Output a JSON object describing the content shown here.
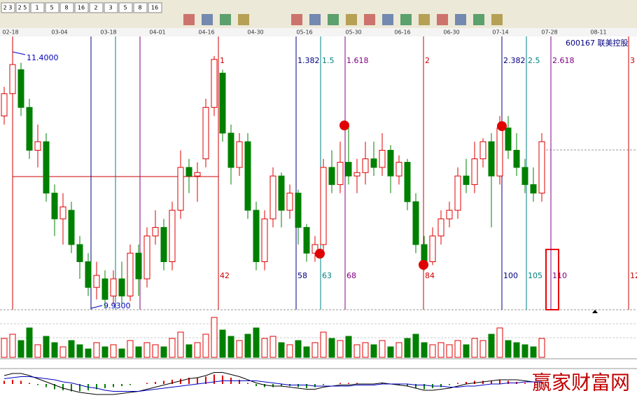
{
  "chart_data": {
    "type": "candlestick",
    "symbol": "600167  联美控股",
    "toolbar_labels": [
      "2 3",
      "2 5",
      "1",
      "5",
      "8",
      "16",
      "2",
      "3",
      "5",
      "8",
      "16"
    ],
    "dates": [
      "02-18",
      "03-04",
      "03-18",
      "04-01",
      "04-16",
      "04-30",
      "05-16",
      "05-30",
      "06-16",
      "06-30",
      "07-14",
      "07-28",
      "08-11"
    ],
    "high_label": "11.4000",
    "low_label": "9.9300",
    "ylim": [
      9.92,
      11.42
    ],
    "open": [
      11.05,
      11.18,
      11.32,
      11.1,
      10.85,
      10.9,
      10.6,
      10.45,
      10.5,
      10.3,
      10.2,
      10.05,
      10.1,
      10.0,
      10.1,
      10.0,
      10.25,
      10.1,
      10.35,
      10.4,
      10.2,
      10.5,
      10.75,
      10.7,
      10.8,
      11.1,
      11.3,
      10.95,
      10.75,
      10.9,
      10.5,
      10.2,
      10.45,
      10.7,
      10.5,
      10.6,
      10.4,
      10.25,
      10.3,
      10.75,
      10.65,
      10.78,
      10.7,
      10.72,
      10.8,
      10.75,
      10.85,
      10.7,
      10.78,
      10.55,
      10.3,
      10.2,
      10.35,
      10.45,
      10.5,
      10.7,
      10.65,
      10.8,
      10.9,
      10.7,
      10.98,
      10.85,
      10.75,
      10.65,
      10.6
    ],
    "close": [
      11.18,
      11.35,
      11.1,
      10.85,
      10.9,
      10.6,
      10.45,
      10.52,
      10.3,
      10.2,
      10.05,
      10.12,
      9.98,
      10.1,
      10.0,
      10.25,
      10.1,
      10.35,
      10.4,
      10.2,
      10.5,
      10.75,
      10.7,
      10.72,
      11.1,
      11.38,
      10.95,
      10.75,
      10.9,
      10.5,
      10.2,
      10.45,
      10.7,
      10.5,
      10.6,
      10.4,
      10.25,
      10.3,
      10.75,
      10.65,
      10.78,
      10.7,
      10.72,
      10.8,
      10.75,
      10.85,
      10.7,
      10.78,
      10.55,
      10.3,
      10.2,
      10.35,
      10.45,
      10.5,
      10.7,
      10.65,
      10.8,
      10.9,
      10.7,
      10.98,
      10.85,
      10.75,
      10.65,
      10.6,
      10.9
    ],
    "high": [
      11.22,
      11.4,
      11.36,
      11.15,
      11.0,
      10.95,
      10.65,
      10.6,
      10.55,
      10.35,
      10.25,
      10.2,
      10.15,
      10.15,
      10.2,
      10.3,
      10.3,
      10.4,
      10.5,
      10.45,
      10.55,
      10.85,
      10.8,
      10.78,
      11.15,
      11.4,
      11.32,
      11.0,
      10.95,
      10.95,
      10.55,
      10.5,
      10.75,
      10.72,
      10.65,
      10.62,
      10.42,
      10.35,
      10.8,
      10.85,
      10.9,
      11.0,
      10.8,
      10.9,
      10.9,
      10.95,
      10.88,
      10.82,
      10.8,
      10.6,
      10.35,
      10.4,
      10.5,
      10.55,
      10.75,
      10.8,
      10.9,
      10.92,
      10.95,
      11.05,
      11.05,
      10.95,
      10.8,
      10.75,
      10.95
    ],
    "low": [
      11.0,
      11.12,
      11.05,
      10.8,
      10.75,
      10.55,
      10.35,
      10.3,
      10.25,
      10.1,
      10.0,
      9.98,
      9.93,
      9.95,
      9.95,
      9.97,
      10.0,
      10.05,
      10.3,
      10.15,
      10.15,
      10.45,
      10.6,
      10.55,
      10.75,
      11.05,
      10.9,
      10.65,
      10.7,
      10.45,
      10.15,
      10.15,
      10.4,
      10.4,
      10.45,
      10.3,
      10.2,
      10.2,
      10.25,
      10.6,
      10.6,
      10.65,
      10.6,
      10.65,
      10.7,
      10.7,
      10.6,
      10.65,
      10.5,
      10.25,
      10.15,
      10.18,
      10.3,
      10.4,
      10.45,
      10.6,
      10.6,
      10.75,
      10.4,
      10.65,
      10.8,
      10.7,
      10.6,
      10.55,
      10.55
    ],
    "volume": [
      45,
      55,
      40,
      70,
      30,
      50,
      35,
      25,
      40,
      30,
      20,
      35,
      25,
      30,
      20,
      40,
      25,
      35,
      30,
      25,
      45,
      60,
      30,
      35,
      55,
      95,
      65,
      50,
      40,
      55,
      70,
      45,
      50,
      35,
      30,
      40,
      25,
      35,
      60,
      45,
      40,
      50,
      30,
      35,
      30,
      40,
      25,
      35,
      45,
      55,
      35,
      30,
      35,
      30,
      40,
      30,
      45,
      40,
      55,
      70,
      40,
      35,
      30,
      25,
      45
    ],
    "macd": [
      0.3,
      0.4,
      0.3,
      0.1,
      -0.1,
      -0.3,
      -0.5,
      -0.6,
      -0.7,
      -0.7,
      -0.6,
      -0.5,
      -0.4,
      -0.3,
      -0.2,
      -0.1,
      0.0,
      0.1,
      0.2,
      0.3,
      0.4,
      0.5,
      0.6,
      0.6,
      0.7,
      0.9,
      0.8,
      0.6,
      0.4,
      0.1,
      -0.2,
      -0.3,
      -0.3,
      -0.2,
      -0.2,
      -0.3,
      -0.4,
      -0.3,
      -0.1,
      0.0,
      0.1,
      0.1,
      0.1,
      0.0,
      0.0,
      0.1,
      0.0,
      -0.1,
      -0.2,
      -0.4,
      -0.5,
      -0.4,
      -0.3,
      -0.1,
      0.1,
      0.2,
      0.3,
      0.3,
      0.3,
      0.4,
      0.3,
      0.2,
      0.1,
      0.0,
      0.1
    ],
    "dif": [
      0.8,
      1.0,
      1.0,
      0.8,
      0.5,
      0.2,
      -0.1,
      -0.4,
      -0.6,
      -0.8,
      -0.9,
      -1.0,
      -1.0,
      -1.0,
      -0.9,
      -0.8,
      -0.7,
      -0.5,
      -0.3,
      -0.1,
      0.1,
      0.3,
      0.5,
      0.6,
      0.8,
      1.1,
      1.1,
      0.9,
      0.7,
      0.4,
      0.1,
      -0.1,
      -0.2,
      -0.2,
      -0.3,
      -0.4,
      -0.5,
      -0.5,
      -0.3,
      -0.2,
      -0.1,
      -0.1,
      0.0,
      0.0,
      0.0,
      0.1,
      0.0,
      -0.1,
      -0.2,
      -0.4,
      -0.6,
      -0.6,
      -0.5,
      -0.4,
      -0.2,
      0.0,
      0.1,
      0.2,
      0.3,
      0.4,
      0.4,
      0.4,
      0.3,
      0.2,
      0.2
    ],
    "dea": [
      0.5,
      0.6,
      0.7,
      0.7,
      0.6,
      0.5,
      0.4,
      0.2,
      0.1,
      -0.1,
      -0.3,
      -0.4,
      -0.6,
      -0.7,
      -0.7,
      -0.7,
      -0.7,
      -0.6,
      -0.5,
      -0.4,
      -0.3,
      -0.2,
      -0.1,
      0.0,
      0.1,
      0.2,
      0.3,
      0.3,
      0.3,
      0.3,
      0.3,
      0.2,
      0.1,
      0.0,
      -0.1,
      -0.1,
      -0.1,
      -0.2,
      -0.2,
      -0.2,
      -0.2,
      -0.2,
      -0.1,
      -0.1,
      -0.1,
      0.0,
      0.0,
      0.0,
      0.0,
      -0.1,
      -0.1,
      -0.2,
      -0.2,
      -0.3,
      -0.3,
      -0.2,
      -0.2,
      -0.1,
      0.0,
      0.0,
      0.1,
      0.1,
      0.2,
      0.2,
      0.2
    ],
    "fib_lines": [
      {
        "label": "1",
        "bars": 42,
        "color": "#cc0000"
      },
      {
        "label": "1.382",
        "bars": 58,
        "color": "#000080"
      },
      {
        "label": "1.5",
        "bars": 63,
        "color": "#008080"
      },
      {
        "label": "1.618",
        "bars": 68,
        "color": "#800080"
      },
      {
        "label": "2",
        "bars": 84,
        "color": "#cc0000"
      },
      {
        "label": "2.382",
        "bars": 100,
        "color": "#000080"
      },
      {
        "label": "2.5",
        "bars": 105,
        "color": "#008080"
      },
      {
        "label": "2.618",
        "bars": 110,
        "color": "#800080"
      },
      {
        "label": "3",
        "bars": 12,
        "color": "#cc0000"
      }
    ],
    "up_color": "#e00000",
    "down_color": "#008000",
    "watermark": "赢家财富网"
  }
}
